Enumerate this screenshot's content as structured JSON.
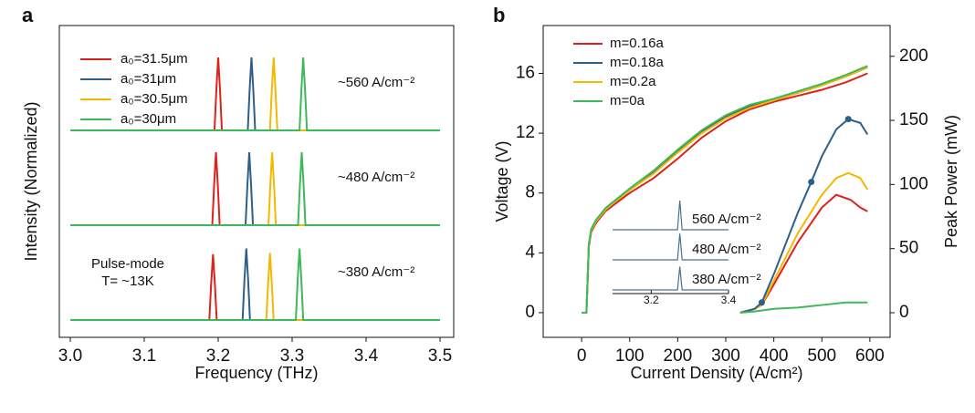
{
  "chart_data": [
    {
      "type": "spectra",
      "panel": "a",
      "xlabel": "Frequency (THz)",
      "ylabel": "Intensity (Normalized)",
      "xlim": [
        3.0,
        3.5
      ],
      "xticks": [
        {
          "value": 3.0,
          "label": "3.0"
        },
        3.1,
        3.2,
        3.3,
        3.4,
        {
          "value": 3.5,
          "label": "3.5"
        }
      ],
      "series": [
        {
          "name": "a₀=31.5μm",
          "color": "#e0201b"
        },
        {
          "name": "a₀=31μm",
          "color": "#2e5f8a"
        },
        {
          "name": "a₀=30.5μm",
          "color": "#f5b800"
        },
        {
          "name": "a₀=30μm",
          "color": "#3cb95a"
        }
      ],
      "rows": [
        {
          "label": "~560 A/cm⁻²",
          "traces": [
            {
              "x": [
                3.0,
                3.195,
                3.1975,
                3.2,
                3.2025,
                3.205,
                3.5
              ],
              "values": [
                0,
                0,
                0.55,
                1,
                0.55,
                0,
                0
              ]
            },
            {
              "x": [
                3.0,
                3.24,
                3.2425,
                3.245,
                3.2475,
                3.25,
                3.5
              ],
              "values": [
                0,
                0,
                0.55,
                1,
                0.55,
                0,
                0
              ]
            },
            {
              "x": [
                3.0,
                3.27,
                3.2725,
                3.275,
                3.2775,
                3.28,
                3.5
              ],
              "values": [
                0,
                0,
                0.55,
                1,
                0.55,
                0,
                0
              ]
            },
            {
              "x": [
                3.0,
                3.31,
                3.3125,
                3.315,
                3.3175,
                3.32,
                3.5
              ],
              "values": [
                0,
                0,
                0.55,
                1,
                0.55,
                0,
                0
              ]
            }
          ]
        },
        {
          "label": "~480 A/cm⁻²",
          "traces": [
            {
              "x": [
                3.0,
                3.192,
                3.1945,
                3.197,
                3.1995,
                3.202,
                3.5
              ],
              "values": [
                0,
                0,
                0.55,
                1,
                0.55,
                0,
                0
              ]
            },
            {
              "x": [
                3.0,
                3.237,
                3.2395,
                3.242,
                3.2445,
                3.247,
                3.5
              ],
              "values": [
                0,
                0,
                0.55,
                1,
                0.55,
                0,
                0
              ]
            },
            {
              "x": [
                3.0,
                3.268,
                3.2705,
                3.273,
                3.2755,
                3.278,
                3.5
              ],
              "values": [
                0,
                0,
                0.55,
                1,
                0.55,
                0,
                0
              ]
            },
            {
              "x": [
                3.0,
                3.308,
                3.3105,
                3.313,
                3.3155,
                3.318,
                3.5
              ],
              "values": [
                0,
                0,
                0.55,
                1,
                0.55,
                0,
                0
              ]
            }
          ]
        },
        {
          "label": "~380 A/cm⁻²",
          "traces": [
            {
              "x": [
                3.0,
                3.188,
                3.1905,
                3.193,
                3.1955,
                3.198,
                3.5
              ],
              "values": [
                0,
                0,
                0.5,
                0.9,
                0.5,
                0,
                0
              ]
            },
            {
              "x": [
                3.0,
                3.233,
                3.2355,
                3.238,
                3.2405,
                3.243,
                3.5
              ],
              "values": [
                0,
                0,
                0.55,
                0.98,
                0.55,
                0,
                0
              ]
            },
            {
              "x": [
                3.0,
                3.265,
                3.2675,
                3.27,
                3.2725,
                3.275,
                3.5
              ],
              "values": [
                0,
                0,
                0.5,
                0.92,
                0.5,
                0,
                0
              ]
            },
            {
              "x": [
                3.0,
                3.305,
                3.3075,
                3.31,
                3.3125,
                3.315,
                3.5
              ],
              "values": [
                0,
                0,
                0.55,
                0.98,
                0.55,
                0,
                0
              ]
            }
          ]
        }
      ],
      "annotations": [
        "Pulse-mode",
        "T= ~13K"
      ]
    },
    {
      "type": "line",
      "panel": "b",
      "xlabel": "Current Density (A/cm²)",
      "ylabel": "Voltage (V)",
      "y2label": "Peak Power (mW)",
      "xlim": [
        -80,
        642
      ],
      "xticks": [
        0,
        100,
        200,
        300,
        400,
        500,
        600
      ],
      "ylim": [
        -1.65,
        19.2
      ],
      "yticks": [
        0,
        4,
        8,
        12,
        16
      ],
      "y2lim": [
        -19.2,
        224
      ],
      "y2ticks": [
        0,
        50,
        100,
        150,
        200
      ],
      "legend": "upper left",
      "series": [
        {
          "name": "m=0.16a",
          "color": "#e0201b",
          "x": [
            0,
            10,
            15,
            20,
            30,
            50,
            100,
            150,
            200,
            250,
            300,
            350,
            400,
            450,
            500,
            550,
            595
          ],
          "values": [
            0,
            0,
            4.4,
            5.4,
            6.0,
            6.8,
            8.0,
            9.0,
            10.3,
            11.7,
            12.8,
            13.6,
            14.1,
            14.5,
            14.9,
            15.4,
            16.0
          ]
        },
        {
          "name": "m=0.18a",
          "color": "#2e5f8a",
          "x": [
            0,
            10,
            15,
            20,
            30,
            50,
            100,
            150,
            200,
            250,
            300,
            350,
            400,
            450,
            500,
            550,
            595
          ],
          "values": [
            0,
            0,
            4.5,
            5.5,
            6.1,
            6.9,
            8.2,
            9.4,
            10.8,
            12.1,
            13.1,
            13.8,
            14.2,
            14.7,
            15.2,
            15.8,
            16.4
          ]
        },
        {
          "name": "m=0.2a",
          "color": "#f5b800",
          "x": [
            0,
            10,
            15,
            20,
            30,
            50,
            100,
            150,
            200,
            250,
            300,
            350,
            400,
            450,
            500,
            550,
            595
          ],
          "values": [
            0,
            0,
            4.5,
            5.5,
            6.1,
            6.9,
            8.2,
            9.3,
            10.7,
            12.0,
            13.0,
            13.7,
            14.2,
            14.7,
            15.2,
            15.8,
            16.4
          ]
        },
        {
          "name": "m=0a",
          "color": "#3cb95a",
          "x": [
            0,
            10,
            15,
            20,
            30,
            50,
            100,
            150,
            200,
            250,
            300,
            350,
            400,
            450,
            500,
            550,
            595
          ],
          "values": [
            0,
            0,
            4.6,
            5.6,
            6.2,
            7.0,
            8.3,
            9.5,
            10.9,
            12.2,
            13.2,
            13.9,
            14.3,
            14.8,
            15.3,
            15.9,
            16.5
          ]
        },
        {
          "color": "#e0201b",
          "axis": "y2",
          "x": [
            330,
            360,
            375,
            400,
            450,
            500,
            530,
            560,
            580,
            595
          ],
          "values": [
            0,
            3,
            6,
            22,
            55,
            82,
            92,
            88,
            82,
            79
          ]
        },
        {
          "color": "#f5b800",
          "axis": "y2",
          "x": [
            330,
            360,
            375,
            400,
            450,
            500,
            530,
            555,
            580,
            595
          ],
          "values": [
            0,
            3,
            6,
            25,
            62,
            92,
            105,
            109,
            105,
            96
          ]
        },
        {
          "color": "#2e5f8a",
          "axis": "y2",
          "x": [
            330,
            360,
            375,
            400,
            450,
            478,
            500,
            530,
            555,
            580,
            595
          ],
          "values": [
            0,
            3,
            8,
            30,
            78,
            102,
            122,
            143,
            151,
            148,
            139
          ]
        },
        {
          "color": "#3cb95a",
          "axis": "y2",
          "x": [
            330,
            360,
            400,
            450,
            500,
            550,
            595
          ],
          "values": [
            0,
            1,
            3,
            4,
            6,
            8,
            8
          ]
        },
        {
          "color": "#2e5f8a",
          "axis": "y2",
          "marker": true,
          "x": [
            375,
            478,
            555
          ],
          "values": [
            8,
            102,
            151
          ]
        }
      ],
      "inset": {
        "color": "#4a6f93",
        "xlim": [
          3.1,
          3.4
        ],
        "xticks": [
          3.2,
          3.4
        ],
        "rows": [
          {
            "label": "560 A/cm⁻²",
            "x": [
              3.1,
              3.268,
              3.271,
              3.274,
              3.277,
              3.28,
              3.4
            ],
            "values": [
              0,
              0,
              0.5,
              1,
              0.5,
              0,
              0
            ]
          },
          {
            "label": "480 A/cm⁻²",
            "x": [
              3.1,
              3.268,
              3.271,
              3.274,
              3.277,
              3.28,
              3.4
            ],
            "values": [
              0,
              0,
              0.45,
              0.9,
              0.45,
              0,
              0
            ]
          },
          {
            "label": "380 A/cm⁻²",
            "x": [
              3.1,
              3.268,
              3.271,
              3.274,
              3.277,
              3.28,
              3.4
            ],
            "values": [
              0,
              0,
              0.4,
              0.8,
              0.4,
              0,
              0
            ]
          }
        ]
      }
    }
  ]
}
